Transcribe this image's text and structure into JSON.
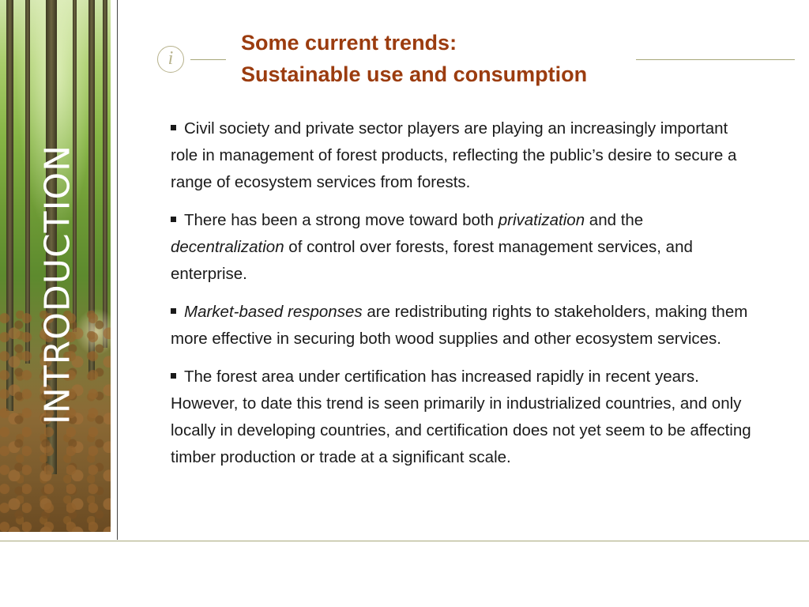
{
  "sidebar": {
    "section_label": "INTRODUCTION"
  },
  "header": {
    "icon": "info-icon",
    "icon_glyph": "i",
    "title_line1": "Some current trends:",
    "title_line2": "Sustainable use and consumption"
  },
  "bullets": [
    {
      "text": "Civil society and private sector players are playing an increasingly important role in management of forest products, reflecting the public’s desire to secure a range of ecosystem services from forests."
    },
    {
      "pre": "There has been a strong move toward both ",
      "em1": "privatization",
      "mid": " and the ",
      "em2": "decentralization",
      "post": " of control over forests, forest management services, and enterprise."
    },
    {
      "em": "Market-based responses",
      "post": " are redistributing rights to stakeholders, making them more effective in securing both wood supplies and other ecosystem services."
    },
    {
      "text": "The forest area under certification has increased rapidly in recent years. However, to date this trend is seen primarily in industrialized countries, and only locally in developing countries, and certification does not yet seem to be affecting timber production or trade at a significant scale."
    }
  ],
  "colors": {
    "title": "#9b3c0f",
    "rule": "#a7a77a",
    "body_text": "#1a1a1a"
  }
}
